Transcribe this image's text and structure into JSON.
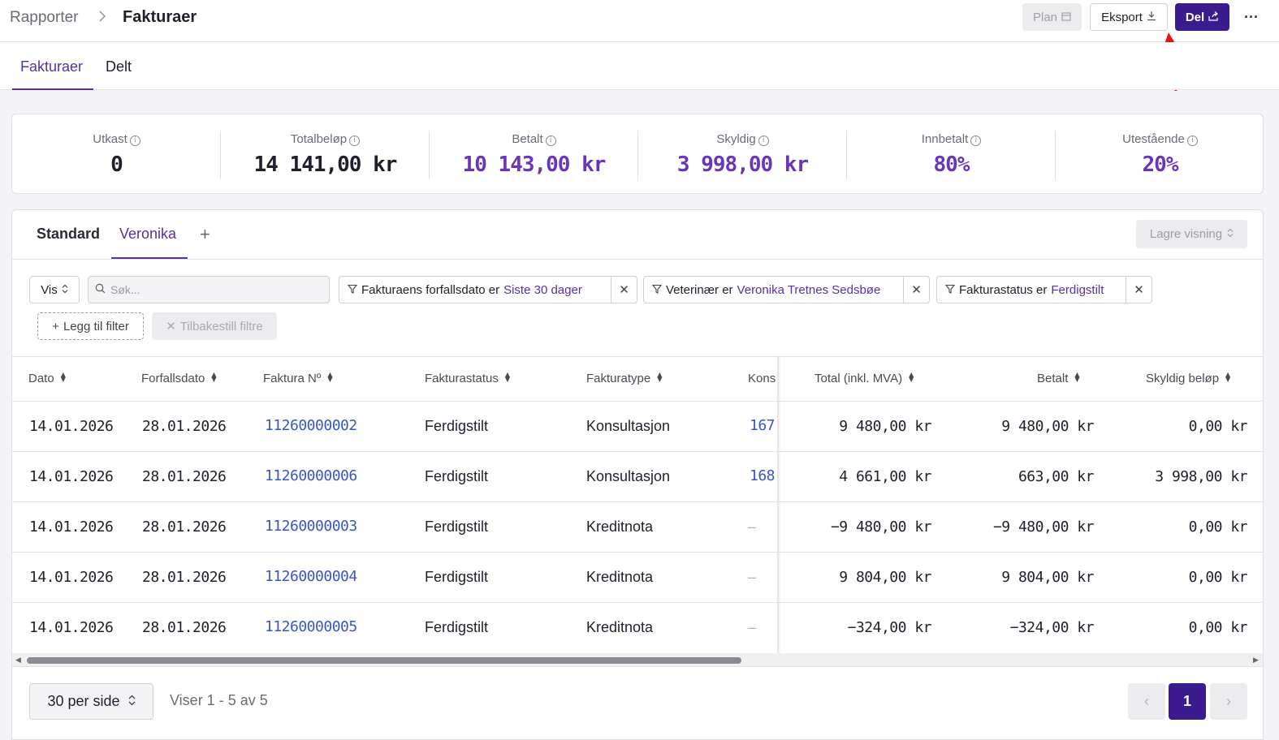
{
  "breadcrumb": {
    "parent": "Rapporter",
    "separator": ">",
    "current": "Fakturaer"
  },
  "toolbar": {
    "plan_label": "Plan",
    "export_label": "Eksport",
    "share_label": "Del",
    "more_label": "···"
  },
  "tabs": [
    {
      "label": "Fakturaer",
      "active": true
    },
    {
      "label": "Delt",
      "active": false
    }
  ],
  "stats": [
    {
      "label": "Utkast",
      "value": "0",
      "color": "#1f1f2e"
    },
    {
      "label": "Totalbeløp",
      "value": "14 141,00 kr",
      "color": "#1f1f2e"
    },
    {
      "label": "Betalt",
      "value": "10 143,00 kr",
      "color": "#6a35b8"
    },
    {
      "label": "Skyldig",
      "value": "3 998,00 kr",
      "color": "#6a35b8"
    },
    {
      "label": "Innbetalt",
      "value": "80%",
      "color": "#6a35b8"
    },
    {
      "label": "Utestående",
      "value": "20%",
      "color": "#6a35b8"
    }
  ],
  "views": {
    "standard": "Standard",
    "active": "Veronika",
    "add": "+",
    "save_label": "Lagre visning"
  },
  "filters": {
    "vis_label": "Vis",
    "search_placeholder": "Søk...",
    "chips": [
      {
        "text": "Fakturaens forfallsdato er",
        "value": "Siste 30 dager"
      },
      {
        "text": "Veterinær er",
        "value": "Veronika Tretnes Sedsbøe"
      },
      {
        "text": "Fakturastatus er",
        "value": "Ferdigstilt"
      }
    ],
    "add_filter_label": "Legg til filter",
    "reset_label": "Tilbakestill filtre"
  },
  "table": {
    "columns": [
      "Dato",
      "Forfallsdato",
      "Faktura Nº",
      "Fakturastatus",
      "Fakturatype",
      "Kons",
      "Total (inkl. MVA)",
      "Betalt",
      "Skyldig beløp"
    ],
    "rows": [
      {
        "dato": "14.01.2026",
        "forfall": "28.01.2026",
        "nr": "11260000002",
        "status": "Ferdigstilt",
        "type": "Konsultasjon",
        "kons": "167",
        "total": "9 480,00 kr",
        "betalt": "9 480,00 kr",
        "skyldig": "0,00 kr"
      },
      {
        "dato": "14.01.2026",
        "forfall": "28.01.2026",
        "nr": "11260000006",
        "status": "Ferdigstilt",
        "type": "Konsultasjon",
        "kons": "168",
        "total": "4 661,00 kr",
        "betalt": "663,00 kr",
        "skyldig": "3 998,00 kr"
      },
      {
        "dato": "14.01.2026",
        "forfall": "28.01.2026",
        "nr": "11260000003",
        "status": "Ferdigstilt",
        "type": "Kreditnota",
        "kons": "–",
        "total": "−9 480,00 kr",
        "betalt": "−9 480,00 kr",
        "skyldig": "0,00 kr"
      },
      {
        "dato": "14.01.2026",
        "forfall": "28.01.2026",
        "nr": "11260000004",
        "status": "Ferdigstilt",
        "type": "Kreditnota",
        "kons": "–",
        "total": "9 804,00 kr",
        "betalt": "9 804,00 kr",
        "skyldig": "0,00 kr"
      },
      {
        "dato": "14.01.2026",
        "forfall": "28.01.2026",
        "nr": "11260000005",
        "status": "Ferdigstilt",
        "type": "Kreditnota",
        "kons": "–",
        "total": "−324,00 kr",
        "betalt": "−324,00 kr",
        "skyldig": "0,00 kr"
      }
    ]
  },
  "pagination": {
    "per_page_label": "30 per side",
    "showing": "Viser 1 - 5 av 5",
    "current_page": "1",
    "prev": "‹",
    "next": "›"
  },
  "colors": {
    "accent": "#5a2ea6",
    "primary_button": "#3c1b8f",
    "link": "#3a55c8",
    "annotation_arrow": "#e8141c"
  }
}
